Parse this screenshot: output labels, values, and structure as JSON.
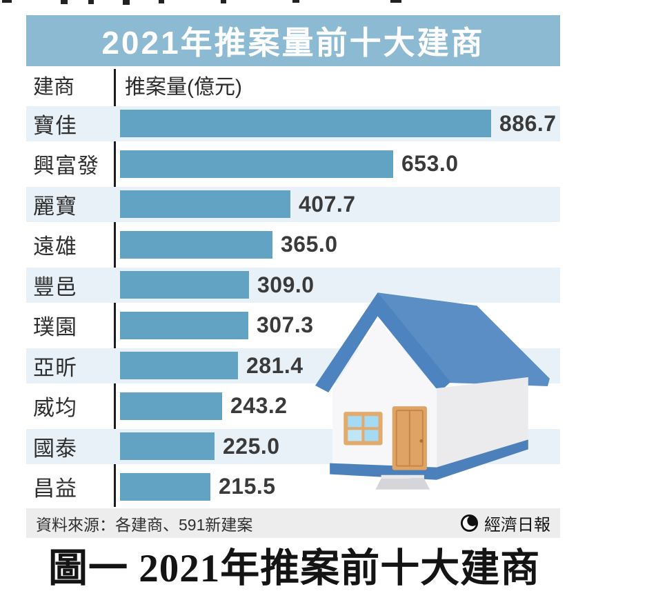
{
  "banner": {
    "title": "2021年推案量前十大建商"
  },
  "table": {
    "builder_header": "建商",
    "volume_header": "推案量(億元)",
    "rows": [
      {
        "builder": "寶佳",
        "value": "886.7"
      },
      {
        "builder": "興富發",
        "value": "653.0"
      },
      {
        "builder": "麗寶",
        "value": "407.7"
      },
      {
        "builder": "遠雄",
        "value": "365.0"
      },
      {
        "builder": "豐邑",
        "value": "309.0"
      },
      {
        "builder": "璞園",
        "value": "307.3"
      },
      {
        "builder": "亞昕",
        "value": "281.4"
      },
      {
        "builder": "威均",
        "value": "243.2"
      },
      {
        "builder": "國泰",
        "value": "225.0"
      },
      {
        "builder": "昌益",
        "value": "215.5"
      }
    ]
  },
  "footer": {
    "source": "資料來源：各建商、591新建案",
    "brand": "經濟日報"
  },
  "caption": "圖一 2021年推案前十大建商",
  "colors": {
    "banner_bg": "#8cbad2",
    "bar": "#62a3c3",
    "row_stripe": "#e9f1f8",
    "footer_bg": "#ededed",
    "axis_line": "#1c1c1c",
    "value_text": "#3a3a3a",
    "house_roof": "#5a8ec5",
    "house_trim": "#4c80ba",
    "house_door": "#dfa366",
    "house_window_pane": "#a4daf4"
  },
  "chart_data": {
    "type": "bar",
    "orientation": "horizontal",
    "title": "2021年推案量前十大建商",
    "categories": [
      "寶佳",
      "興富發",
      "麗寶",
      "遠雄",
      "豐邑",
      "璞園",
      "亞昕",
      "威均",
      "國泰",
      "昌益"
    ],
    "values": [
      886.7,
      653.0,
      407.7,
      365.0,
      309.0,
      307.3,
      281.4,
      243.2,
      225.0,
      215.5
    ],
    "xlabel": "推案量(億元)",
    "ylabel": "建商",
    "xlim": [
      0,
      950
    ],
    "grid": false,
    "legend": false,
    "value_labels": true,
    "bar_color": "#62a3c3",
    "source": "資料來源：各建商、591新建案",
    "publisher": "經濟日報"
  }
}
